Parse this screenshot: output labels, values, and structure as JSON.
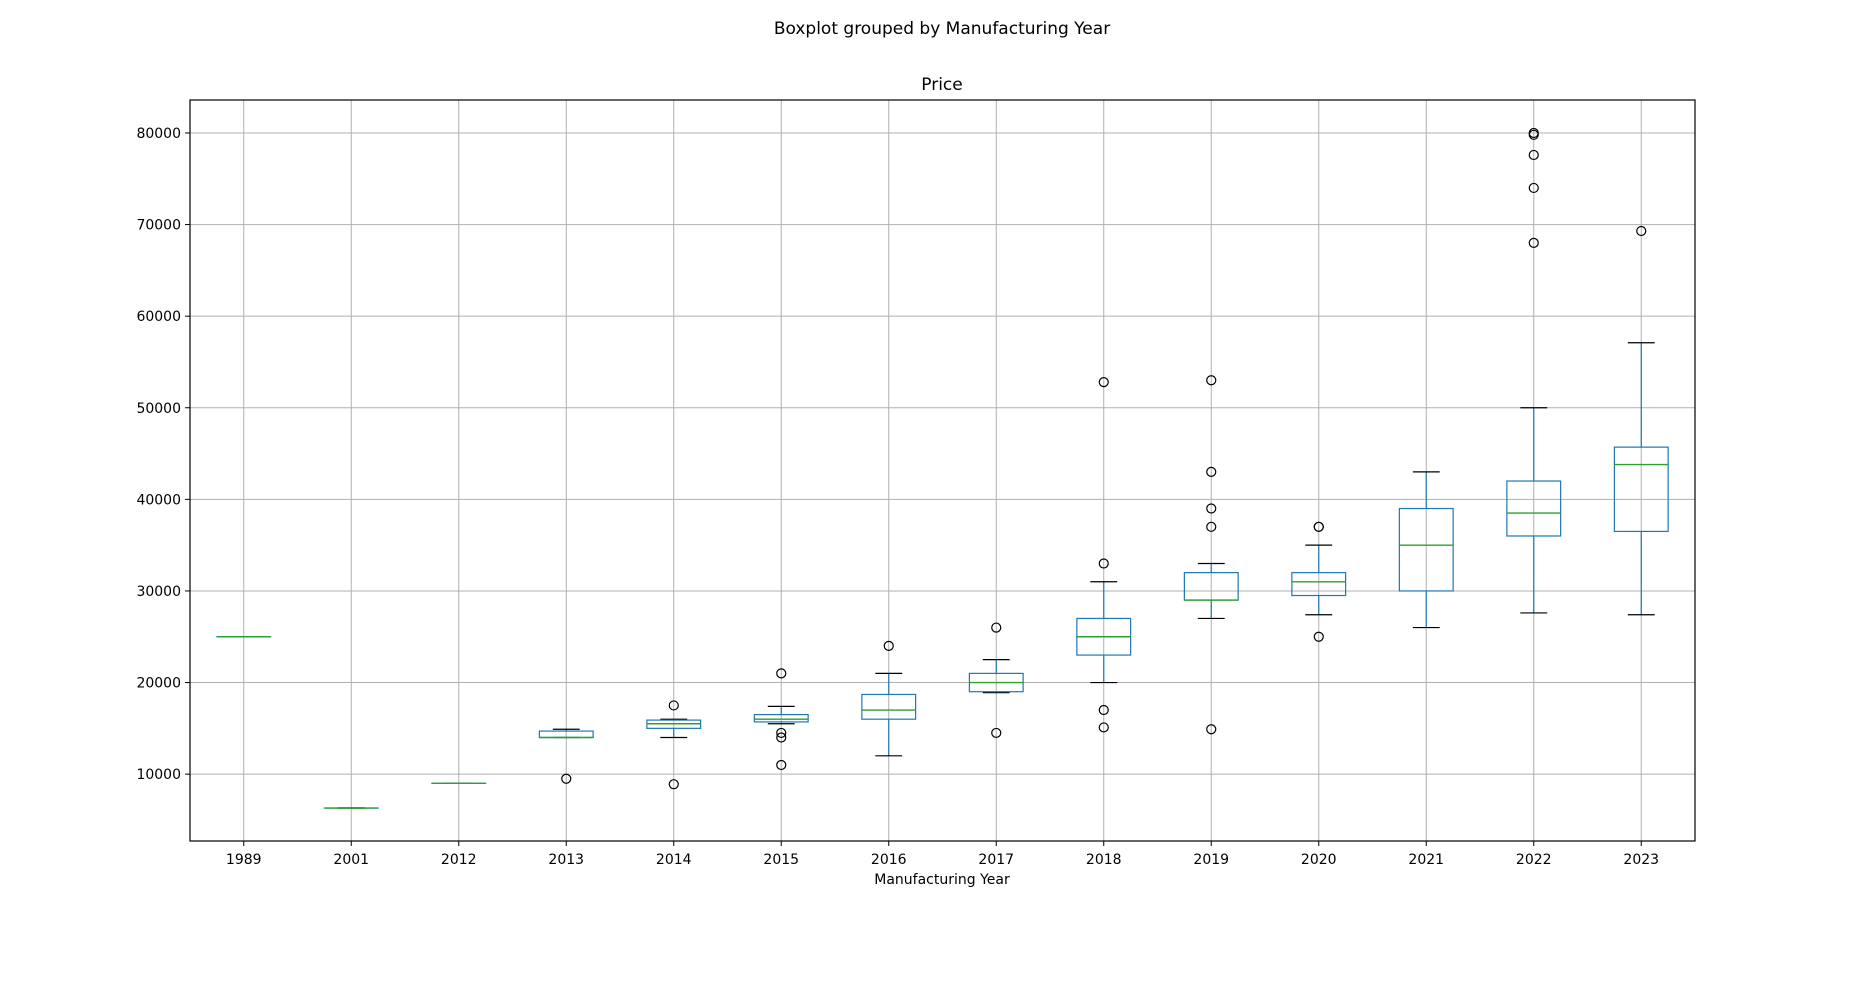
{
  "chart_data": {
    "type": "boxplot",
    "suptitle": "Boxplot grouped by Manufacturing Year",
    "title": "Price",
    "xlabel": "Manufacturing Year",
    "ylabel": "",
    "ylim": [
      2700,
      83600
    ],
    "yticks": [
      10000,
      20000,
      30000,
      40000,
      50000,
      60000,
      70000,
      80000
    ],
    "grid": true,
    "colors": {
      "box": "#1f77b4",
      "median": "#2ca02c",
      "whisker": "#1f77b4",
      "cap": "#000000",
      "flier": "#000000",
      "grid": "#b0b0b0"
    },
    "categories": [
      "1989",
      "2001",
      "2012",
      "2013",
      "2014",
      "2015",
      "2016",
      "2017",
      "2018",
      "2019",
      "2020",
      "2021",
      "2022",
      "2023"
    ],
    "boxes": [
      {
        "whislo": 25000,
        "q1": 25000,
        "med": 25000,
        "q3": 25000,
        "whishi": 25000,
        "fliers": []
      },
      {
        "whislo": 6300,
        "q1": 6300,
        "med": 6300,
        "q3": 6300,
        "whishi": 6300,
        "fliers": []
      },
      {
        "whislo": 9000,
        "q1": 9000,
        "med": 9000,
        "q3": 9000,
        "whishi": 9000,
        "fliers": []
      },
      {
        "whislo": 14000,
        "q1": 14000,
        "med": 14000,
        "q3": 14700,
        "whishi": 14900,
        "fliers": [
          9500
        ]
      },
      {
        "whislo": 14000,
        "q1": 15000,
        "med": 15500,
        "q3": 15900,
        "whishi": 16000,
        "fliers": [
          17500,
          8900
        ]
      },
      {
        "whislo": 15500,
        "q1": 15700,
        "med": 16000,
        "q3": 16500,
        "whishi": 17400,
        "fliers": [
          21000,
          14500,
          14000,
          11000
        ]
      },
      {
        "whislo": 12000,
        "q1": 16000,
        "med": 17000,
        "q3": 18700,
        "whishi": 21000,
        "fliers": [
          24000
        ]
      },
      {
        "whislo": 18900,
        "q1": 19000,
        "med": 20000,
        "q3": 21000,
        "whishi": 22500,
        "fliers": [
          26000,
          14500
        ]
      },
      {
        "whislo": 20000,
        "q1": 23000,
        "med": 25000,
        "q3": 27000,
        "whishi": 31000,
        "fliers": [
          52800,
          33000,
          17000,
          15100
        ]
      },
      {
        "whislo": 27000,
        "q1": 29000,
        "med": 29000,
        "q3": 32000,
        "whishi": 33000,
        "fliers": [
          53000,
          43000,
          39000,
          37000,
          14900
        ]
      },
      {
        "whislo": 27400,
        "q1": 29500,
        "med": 31000,
        "q3": 32000,
        "whishi": 35000,
        "fliers": [
          37000,
          37000,
          25000
        ]
      },
      {
        "whislo": 26000,
        "q1": 30000,
        "med": 35000,
        "q3": 39000,
        "whishi": 43000,
        "fliers": []
      },
      {
        "whislo": 27600,
        "q1": 36000,
        "med": 38500,
        "q3": 42000,
        "whishi": 50000,
        "fliers": [
          80000,
          79800,
          77600,
          74000,
          68000
        ]
      },
      {
        "whislo": 27400,
        "q1": 36500,
        "med": 43800,
        "q3": 45700,
        "whishi": 57100,
        "fliers": [
          69300
        ]
      }
    ]
  }
}
